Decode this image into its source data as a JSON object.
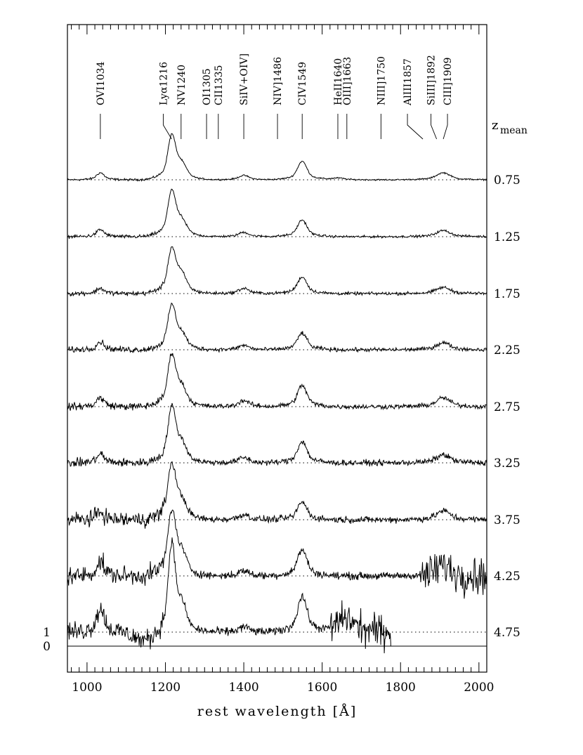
{
  "chart_data": {
    "type": "line",
    "title": "",
    "xlabel": "rest wavelength [Å]",
    "ylabel": "",
    "xlim": [
      950,
      2020
    ],
    "xticks": [
      1000,
      1200,
      1400,
      1600,
      1800,
      2000
    ],
    "y_axis_ticks": [
      {
        "value": 0,
        "label": "0"
      },
      {
        "value": 1,
        "label": "1"
      }
    ],
    "grid": false,
    "legend": "none",
    "stack_key_label": "z",
    "stack_key_subscript": "mean",
    "line_markers": [
      {
        "label": "OVI1034",
        "wavelength": 1034
      },
      {
        "label": "Lyα1216",
        "wavelength": 1216
      },
      {
        "label": "NV1240",
        "wavelength": 1240
      },
      {
        "label": "OI1305",
        "wavelength": 1305
      },
      {
        "label": "CII1335",
        "wavelength": 1335
      },
      {
        "label": "SiIV+OIV]",
        "wavelength": 1400
      },
      {
        "label": "NIV]1486",
        "wavelength": 1486
      },
      {
        "label": "CIV1549",
        "wavelength": 1549
      },
      {
        "label": "HeII1640",
        "wavelength": 1640
      },
      {
        "label": "OIII]1663",
        "wavelength": 1663
      },
      {
        "label": "NIII]1750",
        "wavelength": 1750
      },
      {
        "label": "AlIII1857",
        "wavelength": 1857
      },
      {
        "label": "SiIII]1892",
        "wavelength": 1892
      },
      {
        "label": "CIII]1909",
        "wavelength": 1909
      }
    ],
    "series": [
      {
        "name": "0.75",
        "x_range": [
          950,
          2020
        ],
        "continuum": 1.0,
        "lines": [
          [
            1034,
            0.4,
            9
          ],
          [
            1216,
            2.4,
            9
          ],
          [
            1240,
            0.8,
            12
          ],
          [
            1400,
            0.25,
            12
          ],
          [
            1549,
            1.05,
            11
          ],
          [
            1640,
            0.1,
            15
          ],
          [
            1909,
            0.4,
            16
          ]
        ]
      },
      {
        "name": "1.25",
        "x_range": [
          950,
          2020
        ],
        "continuum": 1.0,
        "lines": [
          [
            1034,
            0.4,
            9
          ],
          [
            1216,
            2.5,
            9
          ],
          [
            1240,
            0.8,
            12
          ],
          [
            1400,
            0.25,
            12
          ],
          [
            1549,
            0.95,
            11
          ],
          [
            1909,
            0.35,
            16
          ]
        ]
      },
      {
        "name": "1.75",
        "x_range": [
          950,
          2020
        ],
        "continuum": 1.0,
        "lines": [
          [
            1034,
            0.3,
            9
          ],
          [
            1216,
            2.4,
            9
          ],
          [
            1240,
            1.0,
            12
          ],
          [
            1400,
            0.3,
            12
          ],
          [
            1549,
            0.95,
            11
          ],
          [
            1909,
            0.35,
            16
          ]
        ]
      },
      {
        "name": "2.25",
        "x_range": [
          950,
          2020
        ],
        "continuum": 1.0,
        "lines": [
          [
            1034,
            0.45,
            9
          ],
          [
            1216,
            2.4,
            9
          ],
          [
            1240,
            0.8,
            12
          ],
          [
            1400,
            0.25,
            12
          ],
          [
            1549,
            0.95,
            11
          ],
          [
            1909,
            0.4,
            16
          ]
        ]
      },
      {
        "name": "2.75",
        "x_range": [
          950,
          2020
        ],
        "continuum": 1.0,
        "lines": [
          [
            1034,
            0.5,
            9
          ],
          [
            1216,
            2.8,
            9
          ],
          [
            1240,
            1.0,
            12
          ],
          [
            1400,
            0.35,
            12
          ],
          [
            1549,
            1.2,
            11
          ],
          [
            1909,
            0.5,
            16
          ]
        ]
      },
      {
        "name": "3.25",
        "x_range": [
          950,
          2020
        ],
        "continuum": 1.0,
        "lines": [
          [
            1034,
            0.5,
            9
          ],
          [
            1216,
            3.0,
            9
          ],
          [
            1240,
            1.0,
            12
          ],
          [
            1400,
            0.3,
            12
          ],
          [
            1549,
            1.2,
            11
          ],
          [
            1909,
            0.45,
            16
          ]
        ]
      },
      {
        "name": "3.75",
        "x_range": [
          950,
          2020
        ],
        "continuum": 1.0,
        "lines": [
          [
            1034,
            0.45,
            9
          ],
          [
            1216,
            3.0,
            9
          ],
          [
            1240,
            1.0,
            12
          ],
          [
            1400,
            0.3,
            12
          ],
          [
            1549,
            1.0,
            11
          ],
          [
            1909,
            0.5,
            16
          ]
        ]
      },
      {
        "name": "4.25",
        "x_range": [
          950,
          2020
        ],
        "continuum": 1.0,
        "lines": [
          [
            1034,
            0.8,
            9
          ],
          [
            1216,
            3.5,
            9
          ],
          [
            1240,
            1.2,
            12
          ],
          [
            1400,
            0.3,
            12
          ],
          [
            1549,
            1.5,
            11
          ],
          [
            1909,
            0.6,
            16
          ]
        ]
      },
      {
        "name": "4.75",
        "x_range": [
          950,
          1775
        ],
        "continuum": 1.0,
        "lines": [
          [
            1034,
            1.3,
            10
          ],
          [
            1216,
            4.8,
            8
          ],
          [
            1240,
            1.4,
            12
          ],
          [
            1400,
            0.3,
            12
          ],
          [
            1549,
            2.0,
            11
          ],
          [
            1660,
            0.8,
            20
          ]
        ]
      }
    ]
  }
}
